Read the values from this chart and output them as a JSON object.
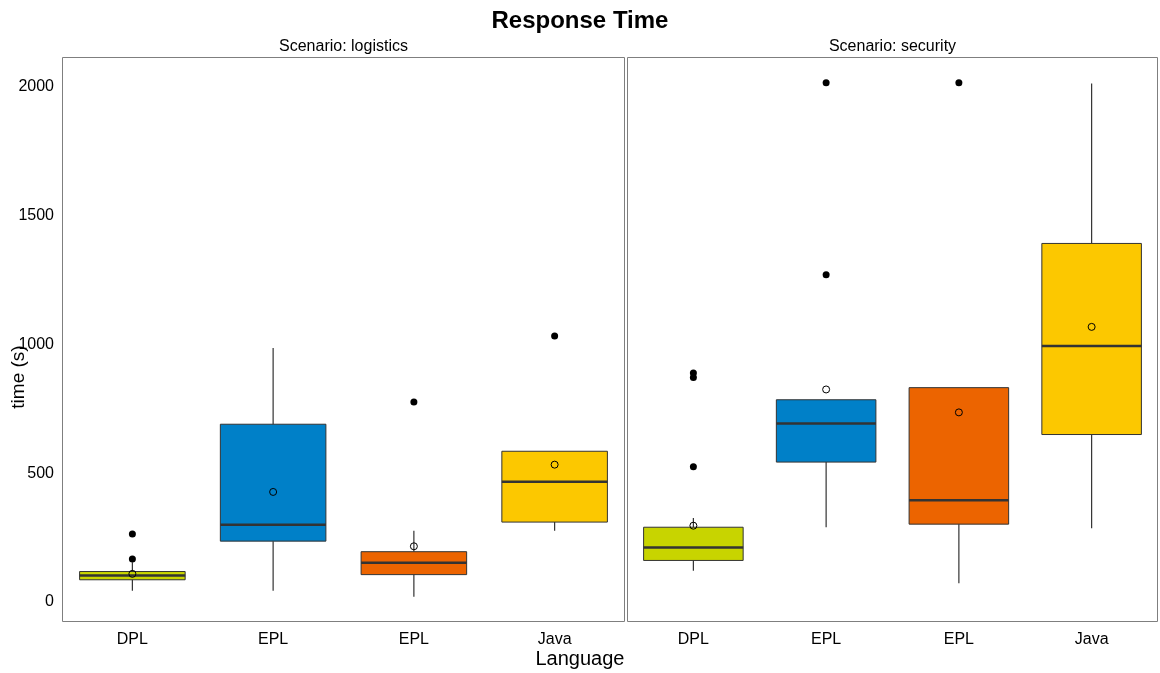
{
  "chart_data": [
    {
      "type": "box",
      "title": "Response Time",
      "subtitle": "Scenario: logistics",
      "xlabel": "Language",
      "ylabel": "time (s)",
      "categories": [
        "DPL",
        "EPL",
        "EPL",
        "Java"
      ],
      "colors": [
        "#c8d400",
        "#0080c8",
        "#ec6400",
        "#fcc800"
      ],
      "boxes": [
        {
          "low": 43,
          "q1": 86,
          "median": 103,
          "q3": 118,
          "high": 154,
          "mean": 109,
          "outliers": [
            167,
            264
          ]
        },
        {
          "low": 43,
          "q1": 236,
          "median": 300,
          "q3": 690,
          "high": 986,
          "mean": 427
        },
        {
          "low": 20,
          "q1": 106,
          "median": 152,
          "q3": 195,
          "high": 276,
          "mean": 216,
          "outliers": [
            776
          ]
        },
        {
          "low": 276,
          "q1": 310,
          "median": 467,
          "q3": 585,
          "high": 585,
          "mean": 533,
          "outliers": [
            1033
          ]
        }
      ],
      "ylim": [
        -78,
        2116
      ],
      "yticks": [
        0,
        500,
        1000,
        1500,
        2000
      ]
    },
    {
      "type": "box",
      "subtitle": "Scenario: security",
      "categories": [
        "DPL",
        "EPL",
        "EPL",
        "Java"
      ],
      "colors": [
        "#c8d400",
        "#0080c8",
        "#ec6400",
        "#fcc800"
      ],
      "boxes": [
        {
          "low": 121,
          "q1": 161,
          "median": 211,
          "q3": 290,
          "high": 326,
          "mean": 296,
          "outliers": [
            525,
            871,
            889
          ]
        },
        {
          "low": 290,
          "q1": 543,
          "median": 693,
          "q3": 785,
          "high": 785,
          "mean": 825,
          "outliers": [
            1270,
            2016
          ]
        },
        {
          "low": 72,
          "q1": 302,
          "median": 395,
          "q3": 832,
          "high": 832,
          "mean": 736,
          "outliers": [
            2016
          ]
        },
        {
          "low": 286,
          "q1": 650,
          "median": 994,
          "q3": 1392,
          "high": 2013,
          "mean": 1068
        }
      ],
      "ylim": [
        -78,
        2116
      ],
      "yticks": [
        0,
        500,
        1000,
        1500,
        2000
      ],
      "tick_labels": "x"
    }
  ]
}
